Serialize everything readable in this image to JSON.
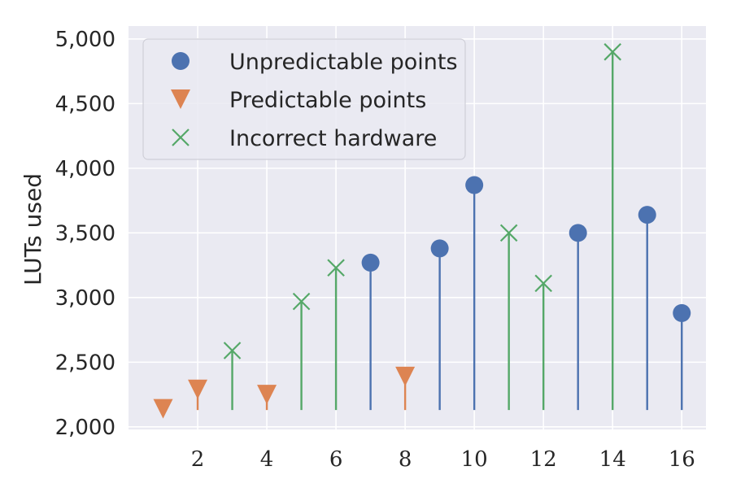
{
  "chart_data": {
    "type": "scatter",
    "title": "",
    "xlabel": "",
    "ylabel": "LUTs used",
    "xlim": [
      0.0,
      16.7
    ],
    "ylim": [
      1980,
      5100
    ],
    "baseline": 2130,
    "x_ticks": [
      2,
      4,
      6,
      8,
      10,
      12,
      14,
      16
    ],
    "x_tick_labels": [
      "2",
      "4",
      "6",
      "8",
      "10",
      "12",
      "14",
      "16"
    ],
    "y_ticks": [
      2000,
      2500,
      3000,
      3500,
      4000,
      4500,
      5000
    ],
    "y_tick_labels": [
      "2,000",
      "2,500",
      "3,000",
      "3,500",
      "4,000",
      "4,500",
      "5,000"
    ],
    "grid": true,
    "legend_position": "top-left",
    "series": [
      {
        "name": "Unpredictable points",
        "marker": "circle",
        "color": "#4C72B0",
        "points": [
          {
            "x": 7,
            "y": 3270
          },
          {
            "x": 9,
            "y": 3380
          },
          {
            "x": 10,
            "y": 3870
          },
          {
            "x": 13,
            "y": 3500
          },
          {
            "x": 15,
            "y": 3640
          },
          {
            "x": 16,
            "y": 2880
          }
        ]
      },
      {
        "name": "Predictable points",
        "marker": "triangle-down",
        "color": "#DD8452",
        "points": [
          {
            "x": 1,
            "y": 2140
          },
          {
            "x": 2,
            "y": 2290
          },
          {
            "x": 4,
            "y": 2250
          },
          {
            "x": 8,
            "y": 2390
          }
        ]
      },
      {
        "name": "Incorrect hardware",
        "marker": "x",
        "color": "#55A868",
        "points": [
          {
            "x": 3,
            "y": 2590
          },
          {
            "x": 5,
            "y": 2970
          },
          {
            "x": 6,
            "y": 3230
          },
          {
            "x": 11,
            "y": 3500
          },
          {
            "x": 12,
            "y": 3110
          },
          {
            "x": 14,
            "y": 4900
          }
        ]
      }
    ]
  }
}
